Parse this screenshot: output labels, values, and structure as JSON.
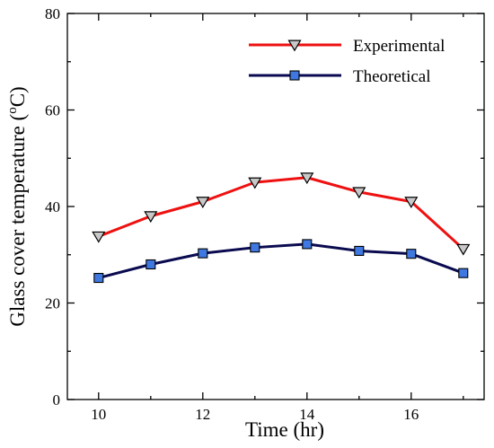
{
  "chart_data": {
    "type": "line",
    "xlabel": "Time (hr)",
    "ylabel_prefix": "Glass cover temperature (",
    "ylabel_sup": "o",
    "ylabel_suffix": "C)",
    "xlim": [
      9.4,
      17.4
    ],
    "ylim": [
      0,
      80
    ],
    "x_ticks": [
      10,
      12,
      14,
      16
    ],
    "y_ticks": [
      0,
      20,
      40,
      60,
      80
    ],
    "grid": false,
    "legend_position": "top-right",
    "x": [
      10,
      11,
      12,
      13,
      14,
      15,
      16,
      17
    ],
    "series": [
      {
        "name": "Experimental",
        "values": [
          33.8,
          38,
          41,
          45,
          46,
          43,
          41,
          31.2
        ],
        "line_color": "#ee1111",
        "marker": "triangle-down",
        "marker_fill": "#c8c8c8"
      },
      {
        "name": "Theoretical",
        "values": [
          25.2,
          28,
          30.3,
          31.5,
          32.2,
          30.8,
          30.2,
          26.2
        ],
        "line_color": "#0a0a50",
        "marker": "square",
        "marker_fill": "#3e78e0"
      }
    ]
  }
}
